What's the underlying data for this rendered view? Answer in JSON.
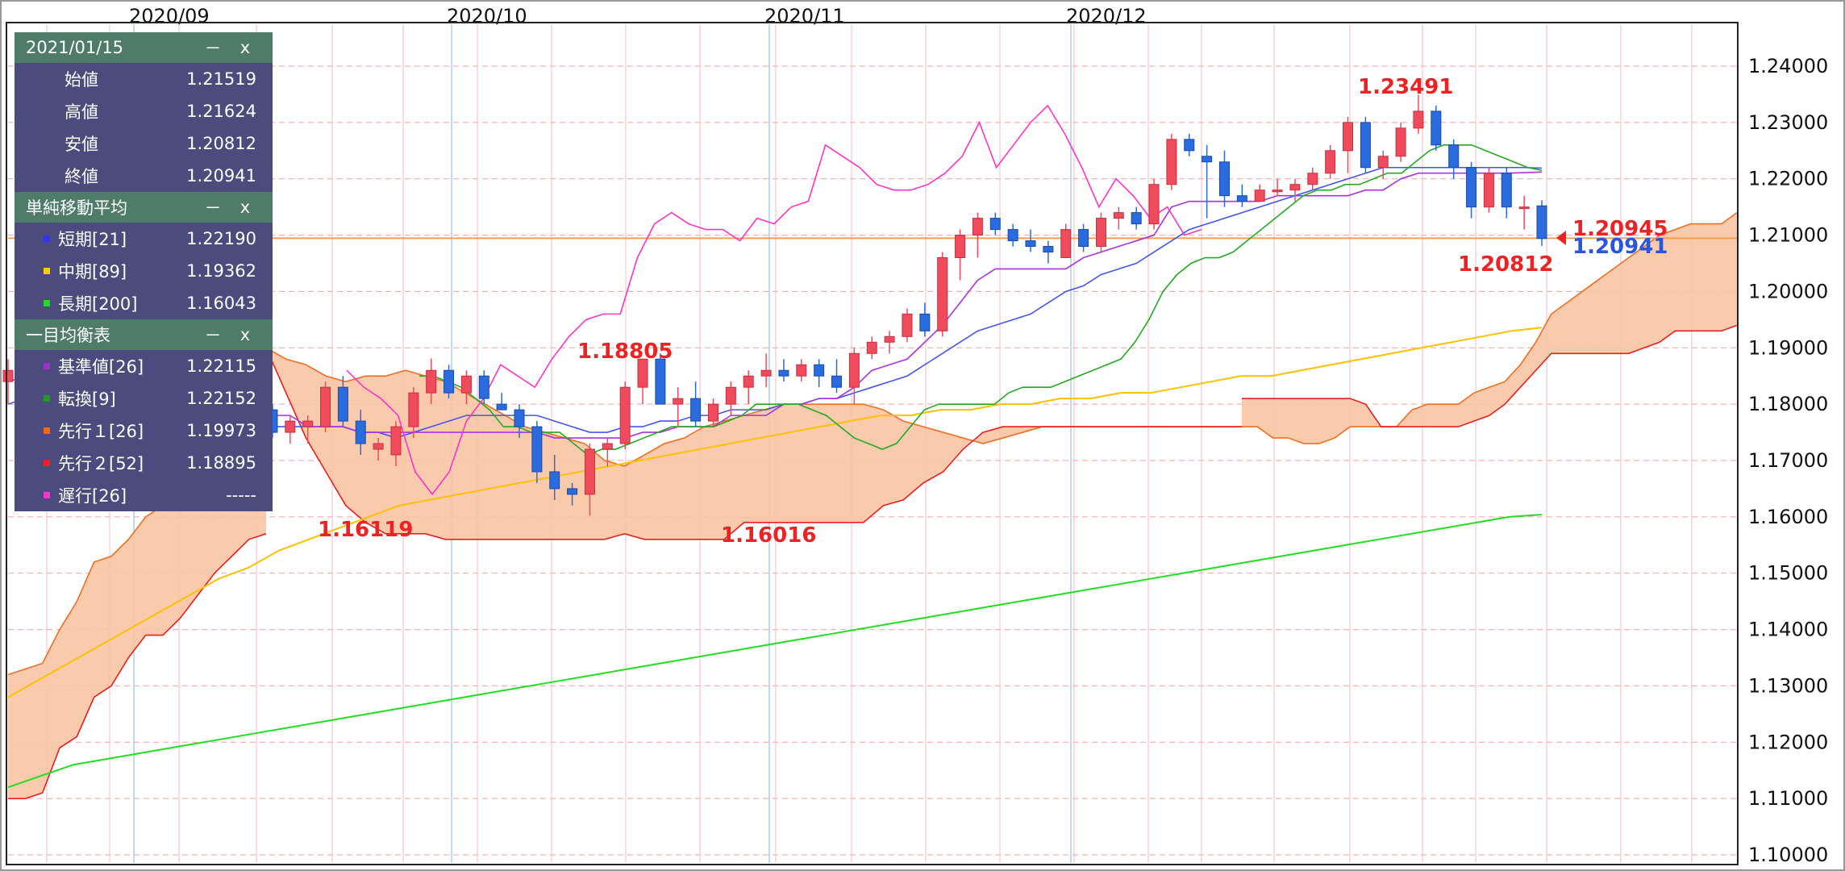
{
  "chart_data": {
    "type": "candlestick",
    "y_ticks": [
      "1.24000",
      "1.23000",
      "1.22000",
      "1.21000",
      "1.20000",
      "1.19000",
      "1.18000",
      "1.17000",
      "1.16000",
      "1.15000",
      "1.14000",
      "1.13000",
      "1.12000",
      "1.11000",
      "1.10000"
    ],
    "ylim": [
      1.1,
      1.245
    ],
    "month_labels": [
      "2020/09",
      "2020/10",
      "2020/11",
      "2020/12"
    ],
    "annotations": {
      "high": "1.23491",
      "oct_high": "1.18805",
      "sep_low": "1.16119",
      "nov_low": "1.16016",
      "last_low": "1.20812",
      "bid": "1.20945",
      "close": "1.20941"
    },
    "ohlc": [
      [
        1.184,
        1.188,
        1.18,
        1.186
      ],
      [
        1.186,
        1.187,
        1.179,
        1.181
      ],
      [
        1.181,
        1.185,
        1.176,
        1.184
      ],
      [
        1.184,
        1.187,
        1.179,
        1.18
      ],
      [
        1.18,
        1.181,
        1.172,
        1.173
      ],
      [
        1.173,
        1.174,
        1.167,
        1.168
      ],
      [
        1.168,
        1.169,
        1.163,
        1.164
      ],
      [
        1.164,
        1.167,
        1.163,
        1.166
      ],
      [
        1.166,
        1.168,
        1.161,
        1.163
      ],
      [
        1.162,
        1.168,
        1.161,
        1.167
      ],
      [
        1.167,
        1.173,
        1.165,
        1.172
      ],
      [
        1.172,
        1.174,
        1.17,
        1.173
      ],
      [
        1.173,
        1.175,
        1.171,
        1.174
      ],
      [
        1.174,
        1.176,
        1.17,
        1.171
      ],
      [
        1.171,
        1.18,
        1.169,
        1.179
      ],
      [
        1.179,
        1.18,
        1.174,
        1.175
      ],
      [
        1.175,
        1.178,
        1.173,
        1.177
      ],
      [
        1.176,
        1.178,
        1.173,
        1.177
      ],
      [
        1.176,
        1.184,
        1.175,
        1.183
      ],
      [
        1.183,
        1.185,
        1.176,
        1.177
      ],
      [
        1.177,
        1.179,
        1.171,
        1.173
      ],
      [
        1.172,
        1.174,
        1.17,
        1.173
      ],
      [
        1.171,
        1.177,
        1.169,
        1.176
      ],
      [
        1.176,
        1.183,
        1.174,
        1.182
      ],
      [
        1.182,
        1.1881,
        1.18,
        1.186
      ],
      [
        1.186,
        1.187,
        1.181,
        1.182
      ],
      [
        1.182,
        1.186,
        1.18,
        1.185
      ],
      [
        1.185,
        1.186,
        1.18,
        1.181
      ],
      [
        1.18,
        1.182,
        1.179,
        1.179
      ],
      [
        1.179,
        1.18,
        1.174,
        1.176
      ],
      [
        1.176,
        1.177,
        1.166,
        1.168
      ],
      [
        1.168,
        1.171,
        1.163,
        1.165
      ],
      [
        1.165,
        1.166,
        1.162,
        1.164
      ],
      [
        1.164,
        1.173,
        1.1602,
        1.172
      ],
      [
        1.172,
        1.174,
        1.169,
        1.173
      ],
      [
        1.173,
        1.184,
        1.172,
        1.183
      ],
      [
        1.183,
        1.188,
        1.18,
        1.188
      ],
      [
        1.188,
        1.189,
        1.18,
        1.18
      ],
      [
        1.18,
        1.183,
        1.176,
        1.181
      ],
      [
        1.181,
        1.184,
        1.176,
        1.177
      ],
      [
        1.177,
        1.181,
        1.176,
        1.18
      ],
      [
        1.18,
        1.184,
        1.178,
        1.183
      ],
      [
        1.183,
        1.186,
        1.18,
        1.185
      ],
      [
        1.185,
        1.189,
        1.183,
        1.186
      ],
      [
        1.186,
        1.188,
        1.184,
        1.185
      ],
      [
        1.185,
        1.188,
        1.184,
        1.187
      ],
      [
        1.187,
        1.188,
        1.183,
        1.185
      ],
      [
        1.185,
        1.188,
        1.182,
        1.183
      ],
      [
        1.183,
        1.19,
        1.18,
        1.189
      ],
      [
        1.189,
        1.192,
        1.188,
        1.191
      ],
      [
        1.191,
        1.193,
        1.189,
        1.192
      ],
      [
        1.192,
        1.197,
        1.191,
        1.196
      ],
      [
        1.196,
        1.198,
        1.192,
        1.193
      ],
      [
        1.193,
        1.207,
        1.192,
        1.206
      ],
      [
        1.206,
        1.211,
        1.202,
        1.21
      ],
      [
        1.21,
        1.214,
        1.206,
        1.213
      ],
      [
        1.213,
        1.214,
        1.21,
        1.211
      ],
      [
        1.211,
        1.212,
        1.208,
        1.209
      ],
      [
        1.209,
        1.211,
        1.207,
        1.208
      ],
      [
        1.208,
        1.209,
        1.205,
        1.207
      ],
      [
        1.206,
        1.212,
        1.206,
        1.211
      ],
      [
        1.211,
        1.212,
        1.207,
        1.208
      ],
      [
        1.208,
        1.214,
        1.207,
        1.213
      ],
      [
        1.213,
        1.215,
        1.211,
        1.214
      ],
      [
        1.214,
        1.215,
        1.211,
        1.212
      ],
      [
        1.212,
        1.22,
        1.211,
        1.219
      ],
      [
        1.219,
        1.228,
        1.218,
        1.227
      ],
      [
        1.227,
        1.228,
        1.224,
        1.225
      ],
      [
        1.224,
        1.226,
        1.213,
        1.223
      ],
      [
        1.223,
        1.225,
        1.215,
        1.217
      ],
      [
        1.217,
        1.219,
        1.215,
        1.216
      ],
      [
        1.216,
        1.219,
        1.216,
        1.218
      ],
      [
        1.218,
        1.22,
        1.217,
        1.218
      ],
      [
        1.218,
        1.22,
        1.216,
        1.219
      ],
      [
        1.219,
        1.222,
        1.218,
        1.221
      ],
      [
        1.221,
        1.226,
        1.22,
        1.225
      ],
      [
        1.225,
        1.231,
        1.221,
        1.23
      ],
      [
        1.23,
        1.231,
        1.221,
        1.222
      ],
      [
        1.222,
        1.225,
        1.22,
        1.224
      ],
      [
        1.224,
        1.23,
        1.223,
        1.229
      ],
      [
        1.229,
        1.2349,
        1.228,
        1.232
      ],
      [
        1.232,
        1.233,
        1.225,
        1.226
      ],
      [
        1.226,
        1.227,
        1.22,
        1.222
      ],
      [
        1.222,
        1.223,
        1.213,
        1.215
      ],
      [
        1.215,
        1.222,
        1.214,
        1.221
      ],
      [
        1.221,
        1.222,
        1.213,
        1.215
      ],
      [
        1.215,
        1.217,
        1.211,
        1.215
      ],
      [
        1.2152,
        1.2162,
        1.2081,
        1.2094
      ]
    ],
    "ichimoku_cloud": [
      [
        1.19,
        1.19
      ],
      [
        1.188,
        1.182
      ],
      [
        1.187,
        1.174
      ],
      [
        1.185,
        1.168
      ],
      [
        1.184,
        1.162
      ],
      [
        1.185,
        1.159
      ],
      [
        1.185,
        1.157
      ],
      [
        1.186,
        1.157
      ],
      [
        1.185,
        1.157
      ],
      [
        1.184,
        1.156
      ],
      [
        1.182,
        1.156
      ],
      [
        1.18,
        1.156
      ],
      [
        1.178,
        1.156
      ],
      [
        1.176,
        1.156
      ],
      [
        1.175,
        1.156
      ],
      [
        1.174,
        1.156
      ],
      [
        1.173,
        1.156
      ],
      [
        1.17,
        1.156
      ],
      [
        1.169,
        1.157
      ],
      [
        1.171,
        1.156
      ],
      [
        1.173,
        1.156
      ],
      [
        1.174,
        1.156
      ],
      [
        1.176,
        1.156
      ],
      [
        1.177,
        1.156
      ],
      [
        1.178,
        1.159
      ],
      [
        1.179,
        1.159
      ],
      [
        1.18,
        1.159
      ],
      [
        1.18,
        1.159
      ],
      [
        1.18,
        1.159
      ],
      [
        1.18,
        1.159
      ],
      [
        1.18,
        1.159
      ],
      [
        1.179,
        1.162
      ],
      [
        1.177,
        1.163
      ],
      [
        1.176,
        1.166
      ],
      [
        1.175,
        1.168
      ],
      [
        1.174,
        1.172
      ],
      [
        1.173,
        1.175
      ],
      [
        1.174,
        1.176
      ],
      [
        1.175,
        1.176
      ],
      [
        1.176,
        1.176
      ],
      [
        1.176,
        1.176
      ],
      [
        1.176,
        1.176
      ],
      [
        1.176,
        1.176
      ],
      [
        1.176,
        1.176
      ],
      [
        1.176,
        1.176
      ],
      [
        1.176,
        1.176
      ],
      [
        1.176,
        1.176
      ],
      [
        1.176,
        1.176
      ],
      [
        1.176,
        1.176
      ],
      [
        1.176,
        1.176
      ]
    ],
    "cloud_future": [
      [
        1.176,
        1.181
      ],
      [
        1.176,
        1.181
      ],
      [
        1.174,
        1.181
      ],
      [
        1.174,
        1.181
      ],
      [
        1.173,
        1.181
      ],
      [
        1.173,
        1.181
      ],
      [
        1.174,
        1.181
      ],
      [
        1.176,
        1.181
      ],
      [
        1.176,
        1.18
      ],
      [
        1.176,
        1.176
      ],
      [
        1.176,
        1.176
      ],
      [
        1.179,
        1.176
      ],
      [
        1.18,
        1.176
      ],
      [
        1.18,
        1.176
      ],
      [
        1.18,
        1.176
      ],
      [
        1.182,
        1.177
      ],
      [
        1.183,
        1.178
      ],
      [
        1.184,
        1.18
      ],
      [
        1.187,
        1.183
      ],
      [
        1.191,
        1.186
      ],
      [
        1.196,
        1.189
      ],
      [
        1.198,
        1.189
      ],
      [
        1.2,
        1.189
      ],
      [
        1.202,
        1.189
      ],
      [
        1.204,
        1.189
      ],
      [
        1.206,
        1.189
      ],
      [
        1.208,
        1.19
      ],
      [
        1.21,
        1.191
      ],
      [
        1.211,
        1.193
      ],
      [
        1.212,
        1.193
      ],
      [
        1.212,
        1.193
      ],
      [
        1.212,
        1.193
      ],
      [
        1.214,
        1.194
      ]
    ],
    "sma_short": [
      1.18,
      1.181,
      1.182,
      1.183,
      1.183,
      1.183,
      1.182,
      1.181,
      1.18,
      1.179,
      1.178,
      1.177,
      1.177,
      1.176,
      1.176,
      1.176,
      1.176,
      1.176,
      1.176,
      1.176,
      1.175,
      1.175,
      1.174,
      1.175,
      1.176,
      1.177,
      1.178,
      1.178,
      1.178,
      1.178,
      1.178,
      1.177,
      1.176,
      1.175,
      1.175,
      1.176,
      1.176,
      1.177,
      1.177,
      1.178,
      1.178,
      1.179,
      1.179,
      1.179,
      1.18,
      1.18,
      1.181,
      1.181,
      1.182,
      1.183,
      1.184,
      1.185,
      1.187,
      1.189,
      1.191,
      1.193,
      1.194,
      1.195,
      1.196,
      1.198,
      1.2,
      1.201,
      1.203,
      1.204,
      1.205,
      1.207,
      1.209,
      1.211,
      1.212,
      1.213,
      1.214,
      1.215,
      1.216,
      1.217,
      1.218,
      1.219,
      1.22,
      1.221,
      1.222,
      1.222,
      1.222,
      1.222,
      1.222,
      1.222,
      1.222,
      1.222,
      1.222,
      1.2219
    ],
    "sma_mid": [
      1.128,
      1.131,
      1.134,
      1.137,
      1.14,
      1.143,
      1.146,
      1.149,
      1.151,
      1.154,
      1.156,
      1.158,
      1.16,
      1.162,
      1.163,
      1.164,
      1.165,
      1.166,
      1.167,
      1.168,
      1.169,
      1.17,
      1.171,
      1.172,
      1.173,
      1.174,
      1.175,
      1.176,
      1.177,
      1.178,
      1.178,
      1.179,
      1.179,
      1.18,
      1.18,
      1.181,
      1.181,
      1.182,
      1.182,
      1.183,
      1.184,
      1.185,
      1.185,
      1.186,
      1.187,
      1.188,
      1.189,
      1.19,
      1.191,
      1.192,
      1.193,
      1.1936
    ],
    "sma_long": [
      1.112,
      1.114,
      1.116,
      1.117,
      1.118,
      1.119,
      1.12,
      1.121,
      1.122,
      1.123,
      1.124,
      1.125,
      1.126,
      1.127,
      1.128,
      1.129,
      1.13,
      1.131,
      1.132,
      1.133,
      1.134,
      1.135,
      1.136,
      1.137,
      1.138,
      1.139,
      1.14,
      1.141,
      1.142,
      1.143,
      1.144,
      1.145,
      1.146,
      1.147,
      1.148,
      1.149,
      1.15,
      1.151,
      1.152,
      1.153,
      1.154,
      1.155,
      1.156,
      1.157,
      1.158,
      1.159,
      1.16,
      1.1604
    ],
    "kijun": [
      1.184,
      1.185,
      1.185,
      1.185,
      1.185,
      1.185,
      1.185,
      1.185,
      1.185,
      1.181,
      1.181,
      1.181,
      1.181,
      1.181,
      1.181,
      1.178,
      1.178,
      1.176,
      1.176,
      1.176,
      1.175,
      1.175,
      1.175,
      1.175,
      1.175,
      1.175,
      1.175,
      1.175,
      1.175,
      1.175,
      1.175,
      1.174,
      1.174,
      1.174,
      1.174,
      1.174,
      1.175,
      1.175,
      1.176,
      1.176,
      1.176,
      1.178,
      1.178,
      1.178,
      1.18,
      1.18,
      1.181,
      1.181,
      1.183,
      1.186,
      1.187,
      1.188,
      1.191,
      1.194,
      1.198,
      1.202,
      1.204,
      1.204,
      1.204,
      1.204,
      1.204,
      1.206,
      1.207,
      1.208,
      1.209,
      1.21,
      1.215,
      1.216,
      1.216,
      1.216,
      1.216,
      1.216,
      1.217,
      1.217,
      1.217,
      1.217,
      1.217,
      1.218,
      1.218,
      1.22,
      1.221,
      1.221,
      1.221,
      1.221,
      1.221,
      1.221,
      1.2211,
      1.2212
    ],
    "tenkan": [
      1.185,
      1.185,
      1.184,
      1.183,
      1.181,
      1.179,
      1.176,
      1.176,
      1.175,
      1.175,
      1.175,
      1.173,
      1.171,
      1.172,
      1.172,
      1.173,
      1.174,
      1.175,
      1.176,
      1.176,
      1.176,
      1.176,
      1.177,
      1.178,
      1.18,
      1.18,
      1.18,
      1.18,
      1.179,
      1.178,
      1.176,
      1.174,
      1.173,
      1.172,
      1.173,
      1.176,
      1.179,
      1.18,
      1.18,
      1.18,
      1.18,
      1.18,
      1.182,
      1.183,
      1.183,
      1.183,
      1.184,
      1.185,
      1.186,
      1.187,
      1.188,
      1.191,
      1.195,
      1.2,
      1.203,
      1.205,
      1.206,
      1.206,
      1.207,
      1.209,
      1.211,
      1.213,
      1.215,
      1.217,
      1.218,
      1.218,
      1.219,
      1.219,
      1.22,
      1.221,
      1.221,
      1.223,
      1.225,
      1.226,
      1.226,
      1.226,
      1.225,
      1.224,
      1.223,
      1.222,
      1.2215
    ],
    "chikou": [
      1.186,
      1.183,
      1.181,
      1.178,
      1.168,
      1.164,
      1.168,
      1.177,
      1.181,
      1.187,
      1.185,
      1.183,
      1.188,
      1.192,
      1.195,
      1.196,
      1.196,
      1.206,
      1.212,
      1.214,
      1.212,
      1.211,
      1.211,
      1.209,
      1.213,
      1.212,
      1.215,
      1.216,
      1.226,
      1.224,
      1.222,
      1.219,
      1.218,
      1.218,
      1.219,
      1.221,
      1.224,
      1.23,
      1.222,
      1.226,
      1.23,
      1.233,
      1.228,
      1.222,
      1.215,
      1.22,
      1.217,
      1.213,
      1.215,
      1.21,
      1.211
    ]
  },
  "panels": {
    "ohlc": {
      "title": "2021/01/15",
      "rows": [
        {
          "label": "始値",
          "value": "1.21519"
        },
        {
          "label": "高値",
          "value": "1.21624"
        },
        {
          "label": "安値",
          "value": "1.20812"
        },
        {
          "label": "終値",
          "value": "1.20941"
        }
      ]
    },
    "sma": {
      "title": "単純移動平均",
      "rows": [
        {
          "label": "短期[21]",
          "value": "1.22190",
          "color": "#3333ff"
        },
        {
          "label": "中期[89]",
          "value": "1.19362",
          "color": "#ffcc00"
        },
        {
          "label": "長期[200]",
          "value": "1.16043",
          "color": "#22dd22"
        }
      ]
    },
    "ichimoku": {
      "title": "一目均衡表",
      "rows": [
        {
          "label": "基準値[26]",
          "value": "1.22115",
          "color": "#9933cc"
        },
        {
          "label": "転換[9]",
          "value": "1.22152",
          "color": "#229922"
        },
        {
          "label": "先行１[26]",
          "value": "1.19973",
          "color": "#ff6600"
        },
        {
          "label": "先行２[52]",
          "value": "1.18895",
          "color": "#ee2222"
        },
        {
          "label": "遅行[26]",
          "value": "-----",
          "color": "#ff33cc"
        }
      ]
    },
    "min_label": "－",
    "close_label": "x"
  },
  "colors": {
    "bull": "#ef4b5c",
    "bear": "#2a6bdf",
    "cloud": "#f9c4a4",
    "cloud_line_a": "#f07020",
    "cloud_line_b": "#e82020",
    "hline": "#f0a050"
  }
}
